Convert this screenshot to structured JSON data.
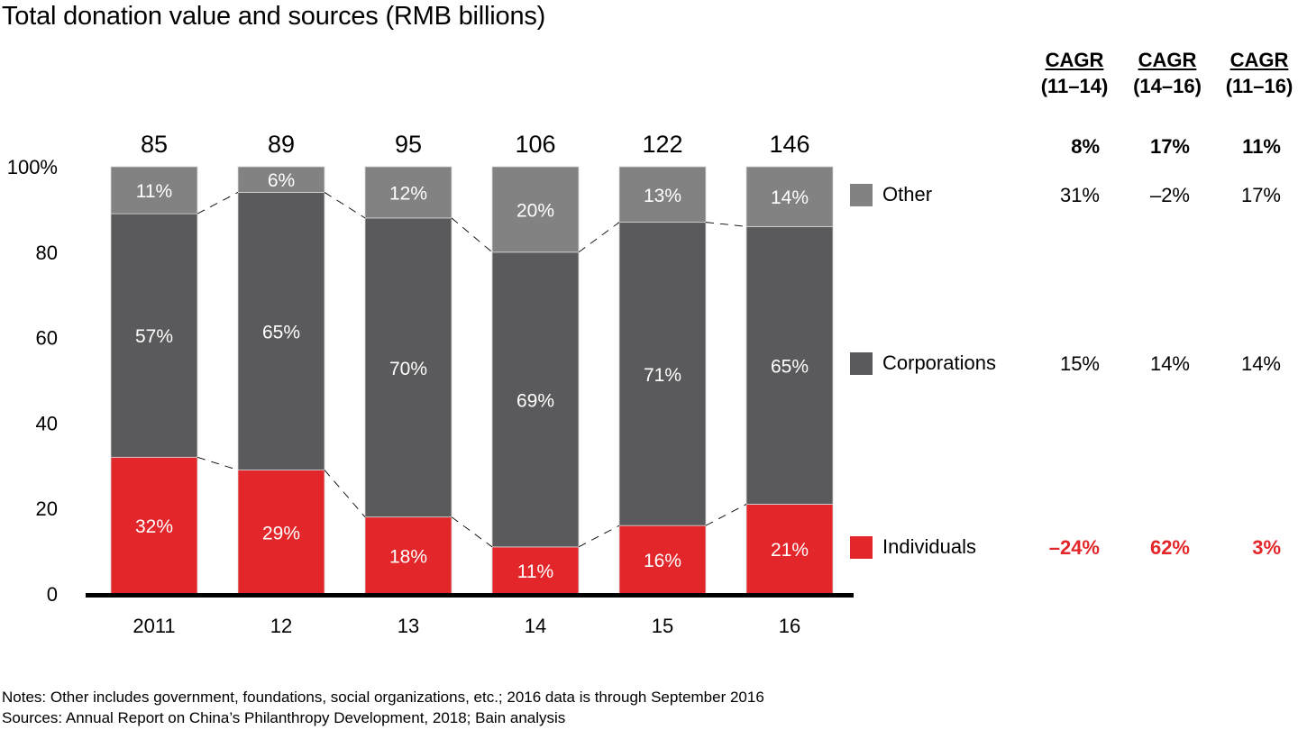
{
  "title": "Total donation value and sources (RMB billions)",
  "colors": {
    "other": "#828282",
    "corporations": "#5a5a5c",
    "individuals": "#e3262a",
    "axis": "#000000",
    "label_on_bar": "#ffffff"
  },
  "chart_data": {
    "type": "bar",
    "stacked": true,
    "normalized": true,
    "title": "Total donation value and sources (RMB billions)",
    "categories": [
      "2011",
      "12",
      "13",
      "14",
      "15",
      "16"
    ],
    "totals": [
      "85",
      "89",
      "95",
      "106",
      "122",
      "146"
    ],
    "series": [
      {
        "name": "Individuals",
        "key": "individuals",
        "values": [
          32,
          29,
          18,
          11,
          16,
          21
        ],
        "labels": [
          "32%",
          "29%",
          "18%",
          "11%",
          "16%",
          "21%"
        ]
      },
      {
        "name": "Corporations",
        "key": "corporations",
        "values": [
          57,
          65,
          70,
          69,
          71,
          65
        ],
        "labels": [
          "57%",
          "65%",
          "70%",
          "69%",
          "71%",
          "65%"
        ]
      },
      {
        "name": "Other",
        "key": "other",
        "values": [
          11,
          6,
          12,
          20,
          13,
          14
        ],
        "labels": [
          "11%",
          "6%",
          "12%",
          "20%",
          "13%",
          "14%"
        ]
      }
    ],
    "yaxis": {
      "ticks": [
        "0",
        "20",
        "40",
        "60",
        "80",
        "100%"
      ],
      "tick_values": [
        0,
        20,
        40,
        60,
        80,
        100
      ],
      "ylim": [
        0,
        100
      ]
    },
    "xlabel": "",
    "ylabel": "",
    "grid": false,
    "connectors": "dashed lines between segment boundaries",
    "legend_placement": "right"
  },
  "cagr": {
    "headers": [
      {
        "label": "CAGR",
        "period": "(11–14)"
      },
      {
        "label": "CAGR",
        "period": "(14–16)"
      },
      {
        "label": "CAGR",
        "period": "(11–16)"
      }
    ],
    "total": [
      "8%",
      "17%",
      "11%"
    ],
    "rows": [
      {
        "name": "Other",
        "values": [
          "31%",
          "–2%",
          "17%"
        ]
      },
      {
        "name": "Corporations",
        "values": [
          "15%",
          "14%",
          "14%"
        ]
      },
      {
        "name": "Individuals",
        "values": [
          "–24%",
          "62%",
          "3%"
        ]
      }
    ]
  },
  "legend": [
    {
      "name": "Other",
      "key": "other"
    },
    {
      "name": "Corporations",
      "key": "corporations"
    },
    {
      "name": "Individuals",
      "key": "individuals"
    }
  ],
  "notes": {
    "line1": "Notes: Other includes government, foundations, social organizations, etc.; 2016 data is through September 2016",
    "line2": "Sources: Annual Report on China’s Philanthropy Development, 2018; Bain analysis"
  }
}
